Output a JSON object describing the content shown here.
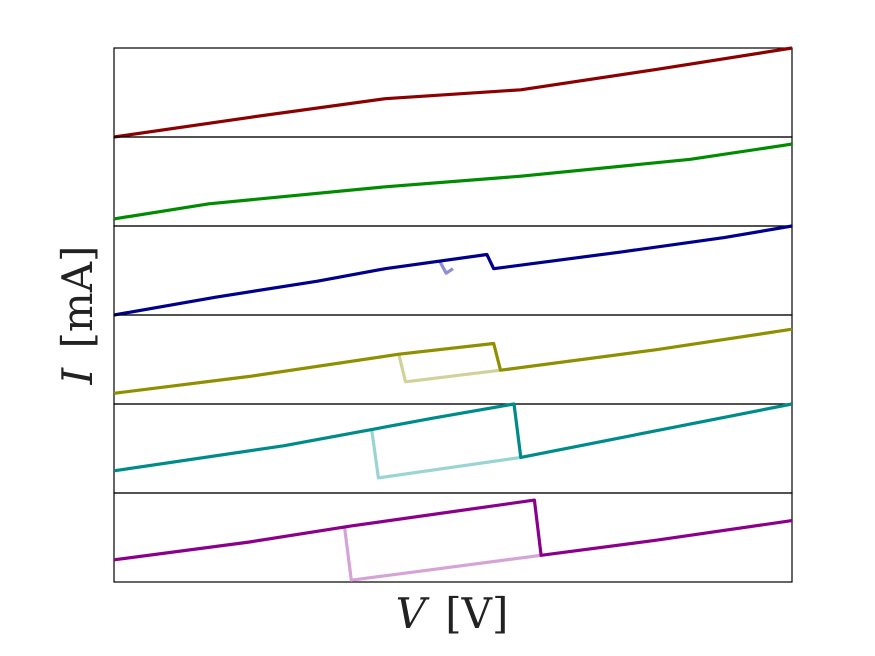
{
  "chart_data": {
    "type": "line",
    "xlabel_italic": "V",
    "xlabel_unit": "[V]",
    "ylabel_italic": "I",
    "ylabel_unit": "[mA]",
    "xlim": [
      0,
      1
    ],
    "grid": false,
    "legend": "none",
    "ticks": "none",
    "panels": [
      {
        "name": "panel-1",
        "ylim": [
          0,
          1
        ],
        "color": "#8b0000",
        "return_color": "#c47f7f",
        "forward": {
          "x": [
            0,
            0.2,
            0.4,
            0.6,
            0.8,
            1.0
          ],
          "y": [
            0,
            0.22,
            0.43,
            0.53,
            0.76,
            1.0
          ]
        },
        "return": {
          "x": [],
          "y": []
        }
      },
      {
        "name": "panel-2",
        "ylim": [
          0,
          1
        ],
        "color": "#008c00",
        "return_color": "#7fc57f",
        "forward": {
          "x": [
            0,
            0.14,
            0.4,
            0.6,
            0.85,
            1.0
          ],
          "y": [
            0.08,
            0.25,
            0.44,
            0.56,
            0.75,
            0.92
          ]
        },
        "return": {
          "x": [],
          "y": []
        }
      },
      {
        "name": "panel-3",
        "ylim": [
          0,
          1
        ],
        "color": "#00008b",
        "return_color": "#8f8fcf",
        "forward": {
          "x": [
            0,
            0.15,
            0.3,
            0.4,
            0.55,
            0.56,
            0.75,
            0.9,
            1.0
          ],
          "y": [
            0,
            0.2,
            0.38,
            0.52,
            0.68,
            0.52,
            0.71,
            0.87,
            1.0
          ]
        },
        "return": {
          "x": [
            0.5,
            0.49,
            0.48
          ],
          "y": [
            0.52,
            0.47,
            0.61
          ]
        }
      },
      {
        "name": "panel-4",
        "ylim": [
          0,
          1
        ],
        "color": "#8f8f00",
        "return_color": "#d1d19a",
        "forward": {
          "x": [
            0,
            0.2,
            0.42,
            0.56,
            0.57,
            0.8,
            1.0
          ],
          "y": [
            0.12,
            0.31,
            0.56,
            0.68,
            0.38,
            0.61,
            0.84
          ]
        },
        "return": {
          "x": [
            0.57,
            0.43,
            0.42
          ],
          "y": [
            0.38,
            0.25,
            0.56
          ]
        }
      },
      {
        "name": "panel-5",
        "ylim": [
          0,
          1
        ],
        "color": "#008b8b",
        "return_color": "#9ad4d4",
        "forward": {
          "x": [
            0,
            0.25,
            0.47,
            0.59,
            0.6,
            0.8,
            1.0
          ],
          "y": [
            0.25,
            0.53,
            0.84,
            1.0,
            0.4,
            0.7,
            1.0
          ]
        },
        "return": {
          "x": [
            0.6,
            0.39,
            0.38
          ],
          "y": [
            0.4,
            0.17,
            0.72
          ]
        }
      },
      {
        "name": "panel-6",
        "ylim": [
          0,
          1
        ],
        "color": "#8b008b",
        "return_color": "#d6a3d6",
        "forward": {
          "x": [
            0,
            0.2,
            0.35,
            0.62,
            0.63,
            0.8,
            1.0
          ],
          "y": [
            0.25,
            0.45,
            0.63,
            0.92,
            0.3,
            0.47,
            0.69
          ]
        },
        "return": {
          "x": [
            0.63,
            0.35,
            0.34
          ],
          "y": [
            0.3,
            0.02,
            0.62
          ]
        }
      }
    ]
  }
}
